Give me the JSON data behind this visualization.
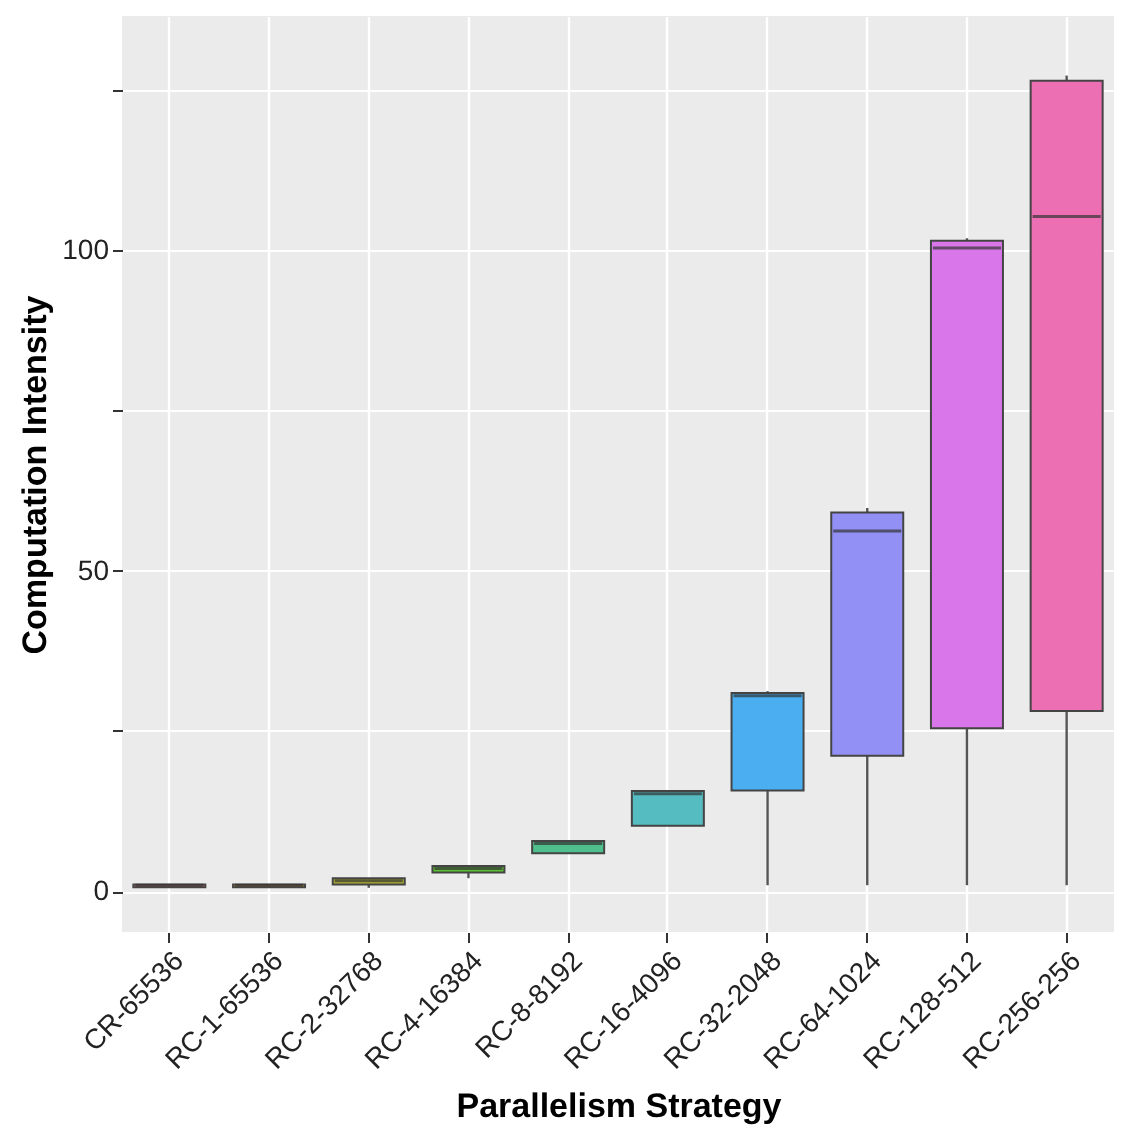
{
  "chart_data": {
    "type": "box",
    "xlabel": "Parallelism Strategy",
    "ylabel": "Computation Intensity",
    "categories": [
      "CR-65536",
      "RC-1-65536",
      "RC-2-32768",
      "RC-4-16384",
      "RC-8-8192",
      "RC-16-4096",
      "RC-32-2048",
      "RC-64-1024",
      "RC-128-512",
      "RC-256-256"
    ],
    "colors": [
      "#f07f78",
      "#d99a33",
      "#b0b133",
      "#5cc133",
      "#4fc08d",
      "#55bcc2",
      "#4aaef0",
      "#9290f5",
      "#d977ea",
      "#ec6fb4"
    ],
    "boxes": [
      {
        "low": 0.6,
        "q1": 0.6,
        "median": 0.9,
        "q3": 1.0,
        "high": 1.0
      },
      {
        "low": 0.6,
        "q1": 0.6,
        "median": 0.9,
        "q3": 1.0,
        "high": 1.0
      },
      {
        "low": 0.5,
        "q1": 1.0,
        "median": 1.6,
        "q3": 2.0,
        "high": 2.0
      },
      {
        "low": 2.0,
        "q1": 2.9,
        "median": 3.5,
        "q3": 3.9,
        "high": 3.9
      },
      {
        "low": 5.9,
        "q1": 5.9,
        "median": 7.4,
        "q3": 7.8,
        "high": 7.8
      },
      {
        "low": 10.2,
        "q1": 10.2,
        "median": 15.2,
        "q3": 15.6,
        "high": 15.6
      },
      {
        "low": 0.9,
        "q1": 15.7,
        "median": 30.5,
        "q3": 30.9,
        "high": 31.2
      },
      {
        "low": 0.9,
        "q1": 21.1,
        "median": 56.2,
        "q3": 59.1,
        "high": 59.8
      },
      {
        "low": 0.9,
        "q1": 25.4,
        "median": 100.4,
        "q3": 101.5,
        "high": 101.9
      },
      {
        "low": 0.9,
        "q1": 28.1,
        "median": 105.3,
        "q3": 126.5,
        "high": 127.3
      }
    ],
    "ylim": [
      -6.4,
      136.6
    ],
    "yticks": [
      0,
      {
        "value": 25,
        "label": null
      },
      50,
      {
        "value": 75,
        "label": null
      },
      100,
      {
        "value": 125,
        "label": null
      }
    ],
    "grid": true,
    "legend": false
  }
}
